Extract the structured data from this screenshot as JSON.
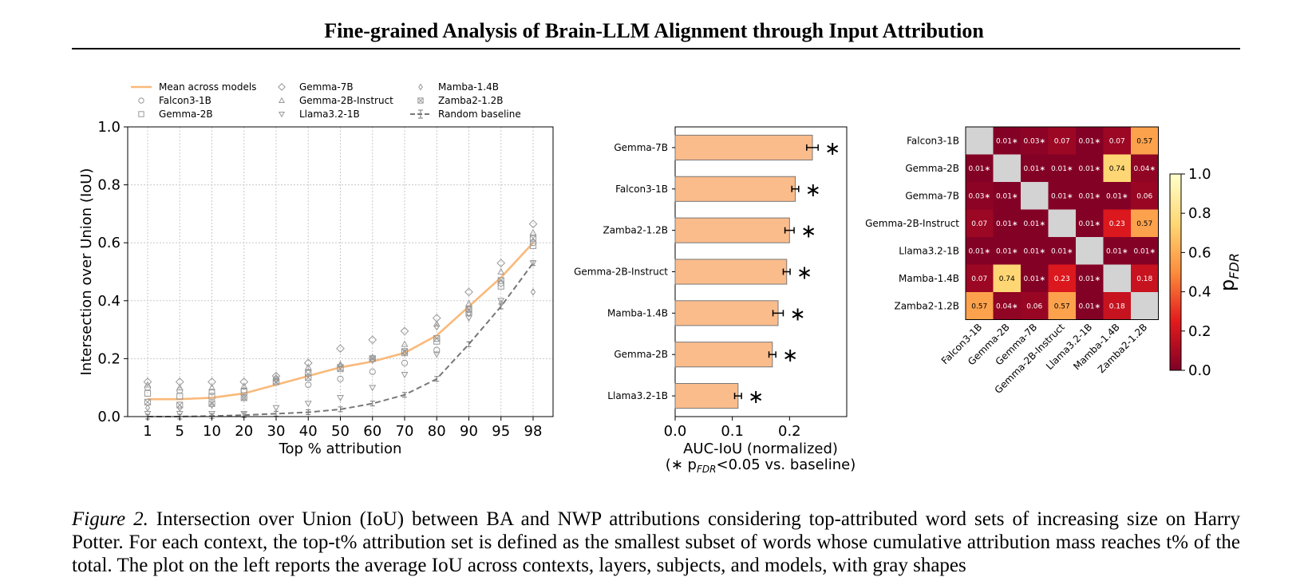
{
  "header": {
    "title": "Fine-grained Analysis of Brain-LLM Alignment through Input Attribution"
  },
  "chart_data": [
    {
      "type": "line",
      "xlabel": "Top % attribution",
      "ylabel": "Intersection over Union (IoU)",
      "x": [
        "1",
        "5",
        "10",
        "20",
        "30",
        "40",
        "50",
        "60",
        "70",
        "80",
        "90",
        "95",
        "98"
      ],
      "ylim": [
        0,
        1
      ],
      "yticks": [
        "0.0",
        "0.2",
        "0.4",
        "0.6",
        "0.8",
        "1.0"
      ],
      "grid": true,
      "legend": {
        "placement": "top",
        "entries": [
          {
            "label": "Mean across models",
            "marker": "line"
          },
          {
            "label": "Falcon3-1B",
            "marker": "circle"
          },
          {
            "label": "Gemma-2B",
            "marker": "square"
          },
          {
            "label": "Gemma-7B",
            "marker": "diamond"
          },
          {
            "label": "Gemma-2B-Instruct",
            "marker": "triangle-up"
          },
          {
            "label": "Llama3.2-1B",
            "marker": "triangle-down"
          },
          {
            "label": "Mamba-1.4B",
            "marker": "thin-diamond"
          },
          {
            "label": "Zamba2-1.2B",
            "marker": "square-x"
          },
          {
            "label": "Random baseline",
            "marker": "dashed-errorbar"
          }
        ]
      },
      "series": [
        {
          "name": "Mean across models",
          "color": "#f9b97a",
          "values": [
            0.06,
            0.06,
            0.065,
            0.08,
            0.11,
            0.14,
            0.17,
            0.19,
            0.22,
            0.28,
            0.38,
            0.48,
            0.6
          ]
        },
        {
          "name": "Random baseline",
          "color": "#777777",
          "values": [
            0.0,
            0.0,
            0.002,
            0.005,
            0.01,
            0.015,
            0.025,
            0.045,
            0.075,
            0.13,
            0.25,
            0.38,
            0.53
          ]
        },
        {
          "name": "Falcon3-1B",
          "marker": "circle",
          "values": [
            0.1,
            0.09,
            0.085,
            0.09,
            0.13,
            0.11,
            0.13,
            0.155,
            0.185,
            0.23,
            0.37,
            0.46,
            0.6
          ]
        },
        {
          "name": "Gemma-2B",
          "marker": "square",
          "values": [
            0.08,
            0.07,
            0.07,
            0.085,
            0.12,
            0.15,
            0.17,
            0.2,
            0.22,
            0.26,
            0.36,
            0.45,
            0.59
          ]
        },
        {
          "name": "Gemma-7B",
          "marker": "diamond",
          "values": [
            0.12,
            0.12,
            0.12,
            0.12,
            0.14,
            0.185,
            0.235,
            0.265,
            0.295,
            0.34,
            0.43,
            0.53,
            0.665
          ]
        },
        {
          "name": "Gemma-2B-Instruct",
          "marker": "triangle-up",
          "values": [
            0.11,
            0.1,
            0.1,
            0.105,
            0.135,
            0.17,
            0.18,
            0.205,
            0.25,
            0.32,
            0.39,
            0.5,
            0.635
          ]
        },
        {
          "name": "Llama3.2-1B",
          "marker": "triangle-down",
          "values": [
            0.01,
            0.01,
            0.01,
            0.01,
            0.03,
            0.045,
            0.065,
            0.1,
            0.145,
            0.215,
            0.34,
            0.4,
            0.53
          ]
        },
        {
          "name": "Mamba-1.4B",
          "marker": "thin-diamond",
          "values": [
            0.03,
            0.03,
            0.04,
            0.065,
            0.125,
            0.155,
            0.175,
            0.195,
            0.22,
            0.31,
            0.355,
            0.39,
            0.43
          ]
        },
        {
          "name": "Zamba2-1.2B",
          "marker": "square-x",
          "values": [
            0.05,
            0.04,
            0.045,
            0.065,
            0.12,
            0.135,
            0.165,
            0.2,
            0.225,
            0.27,
            0.37,
            0.47,
            0.615
          ]
        }
      ]
    },
    {
      "type": "bar",
      "orientation": "horizontal",
      "categories": [
        "Gemma-7B",
        "Falcon3-1B",
        "Zamba2-1.2B",
        "Gemma-2B-Instruct",
        "Mamba-1.4B",
        "Gemma-2B",
        "Llama3.2-1B"
      ],
      "values": [
        0.24,
        0.21,
        0.2,
        0.195,
        0.18,
        0.17,
        0.11
      ],
      "errors": [
        0.01,
        0.006,
        0.008,
        0.006,
        0.009,
        0.006,
        0.006
      ],
      "significance": [
        "∗",
        "∗",
        "∗",
        "∗",
        "∗",
        "∗",
        "∗"
      ],
      "color": "#fbbc8c",
      "xlim": [
        0,
        0.3
      ],
      "xticks": [
        "0.0",
        "0.1",
        "0.2"
      ],
      "xlabel": "AUC-IoU (normalized)",
      "xlabel2": "(∗ p",
      "xlabel2_sub": "FDR",
      "xlabel2_tail": "<0.05 vs. baseline)"
    },
    {
      "type": "heatmap",
      "rows": [
        "Falcon3-1B",
        "Gemma-2B",
        "Gemma-7B",
        "Gemma-2B-Instruct",
        "Llama3.2-1B",
        "Mamba-1.4B",
        "Zamba2-1.2B"
      ],
      "cols": [
        "Falcon3-1B",
        "Gemma-2B",
        "Gemma-7B",
        "Gemma-2B-Instruct",
        "Llama3.2-1B",
        "Mamba-1.4B",
        "Zamba2-1.2B"
      ],
      "values": [
        [
          null,
          0.01,
          0.03,
          0.07,
          0.01,
          0.07,
          0.57
        ],
        [
          0.01,
          null,
          0.01,
          0.01,
          0.01,
          0.74,
          0.04
        ],
        [
          0.03,
          0.01,
          null,
          0.01,
          0.01,
          0.01,
          0.06
        ],
        [
          0.07,
          0.01,
          0.01,
          null,
          0.01,
          0.23,
          0.57
        ],
        [
          0.01,
          0.01,
          0.01,
          0.01,
          null,
          0.01,
          0.01
        ],
        [
          0.07,
          0.74,
          0.01,
          0.23,
          0.01,
          null,
          0.18
        ],
        [
          0.57,
          0.04,
          0.06,
          0.57,
          0.01,
          0.18,
          null
        ]
      ],
      "labels": [
        [
          null,
          "0.01∗",
          "0.03∗",
          "0.07",
          "0.01∗",
          "0.07",
          "0.57"
        ],
        [
          "0.01∗",
          null,
          "0.01∗",
          "0.01∗",
          "0.01∗",
          "0.74",
          "0.04∗"
        ],
        [
          "0.03∗",
          "0.01∗",
          null,
          "0.01∗",
          "0.01∗",
          "0.01∗",
          "0.06"
        ],
        [
          "0.07",
          "0.01∗",
          "0.01∗",
          null,
          "0.01∗",
          "0.23",
          "0.57"
        ],
        [
          "0.01∗",
          "0.01∗",
          "0.01∗",
          "0.01∗",
          null,
          "0.01∗",
          "0.01∗"
        ],
        [
          "0.07",
          "0.74",
          "0.01∗",
          "0.23",
          "0.01∗",
          null,
          "0.18"
        ],
        [
          "0.57",
          "0.04∗",
          "0.06",
          "0.57",
          "0.01∗",
          "0.18",
          null
        ]
      ],
      "colormap": "YlOrRd_r",
      "diagonal_color": "#d3d3d3",
      "colorbar": {
        "ticks": [
          "0.0",
          "0.2",
          "0.4",
          "0.6",
          "0.8",
          "1.0"
        ],
        "label": "p",
        "label_sub": "FDR",
        "range": [
          0,
          1
        ]
      }
    }
  ],
  "caption": {
    "label": "Figure 2.",
    "text": "Intersection over Union (IoU) between BA and NWP attributions considering top-attributed word sets of increasing size on Harry Potter. For each context, the top-t% attribution set is defined as the smallest subset of words whose cumulative attribution mass reaches t% of the total. The plot on the left reports the average IoU across contexts, layers, subjects, and models, with gray shapes"
  }
}
